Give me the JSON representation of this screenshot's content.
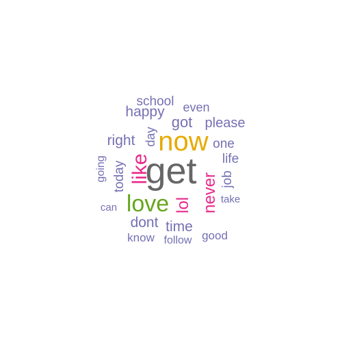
{
  "colors": {
    "background": "#ffffff",
    "purple": "#7570b3",
    "gray": "#666666",
    "gold": "#e6ab02",
    "magenta": "#e7298a",
    "green": "#66a61e"
  },
  "words": [
    {
      "text": "get",
      "color": "#666666"
    },
    {
      "text": "now",
      "color": "#e6ab02"
    },
    {
      "text": "love",
      "color": "#66a61e"
    },
    {
      "text": "like",
      "color": "#e7298a"
    },
    {
      "text": "never",
      "color": "#e7298a"
    },
    {
      "text": "lol",
      "color": "#e7298a"
    },
    {
      "text": "school",
      "color": "#7570b3"
    },
    {
      "text": "happy",
      "color": "#7570b3"
    },
    {
      "text": "even",
      "color": "#7570b3"
    },
    {
      "text": "got",
      "color": "#7570b3"
    },
    {
      "text": "please",
      "color": "#7570b3"
    },
    {
      "text": "right",
      "color": "#7570b3"
    },
    {
      "text": "day",
      "color": "#7570b3"
    },
    {
      "text": "one",
      "color": "#7570b3"
    },
    {
      "text": "life",
      "color": "#7570b3"
    },
    {
      "text": "today",
      "color": "#7570b3"
    },
    {
      "text": "going",
      "color": "#7570b3"
    },
    {
      "text": "job",
      "color": "#7570b3"
    },
    {
      "text": "take",
      "color": "#7570b3"
    },
    {
      "text": "can",
      "color": "#7570b3"
    },
    {
      "text": "dont",
      "color": "#7570b3"
    },
    {
      "text": "time",
      "color": "#7570b3"
    },
    {
      "text": "know",
      "color": "#7570b3"
    },
    {
      "text": "follow",
      "color": "#7570b3"
    },
    {
      "text": "good",
      "color": "#7570b3"
    }
  ]
}
